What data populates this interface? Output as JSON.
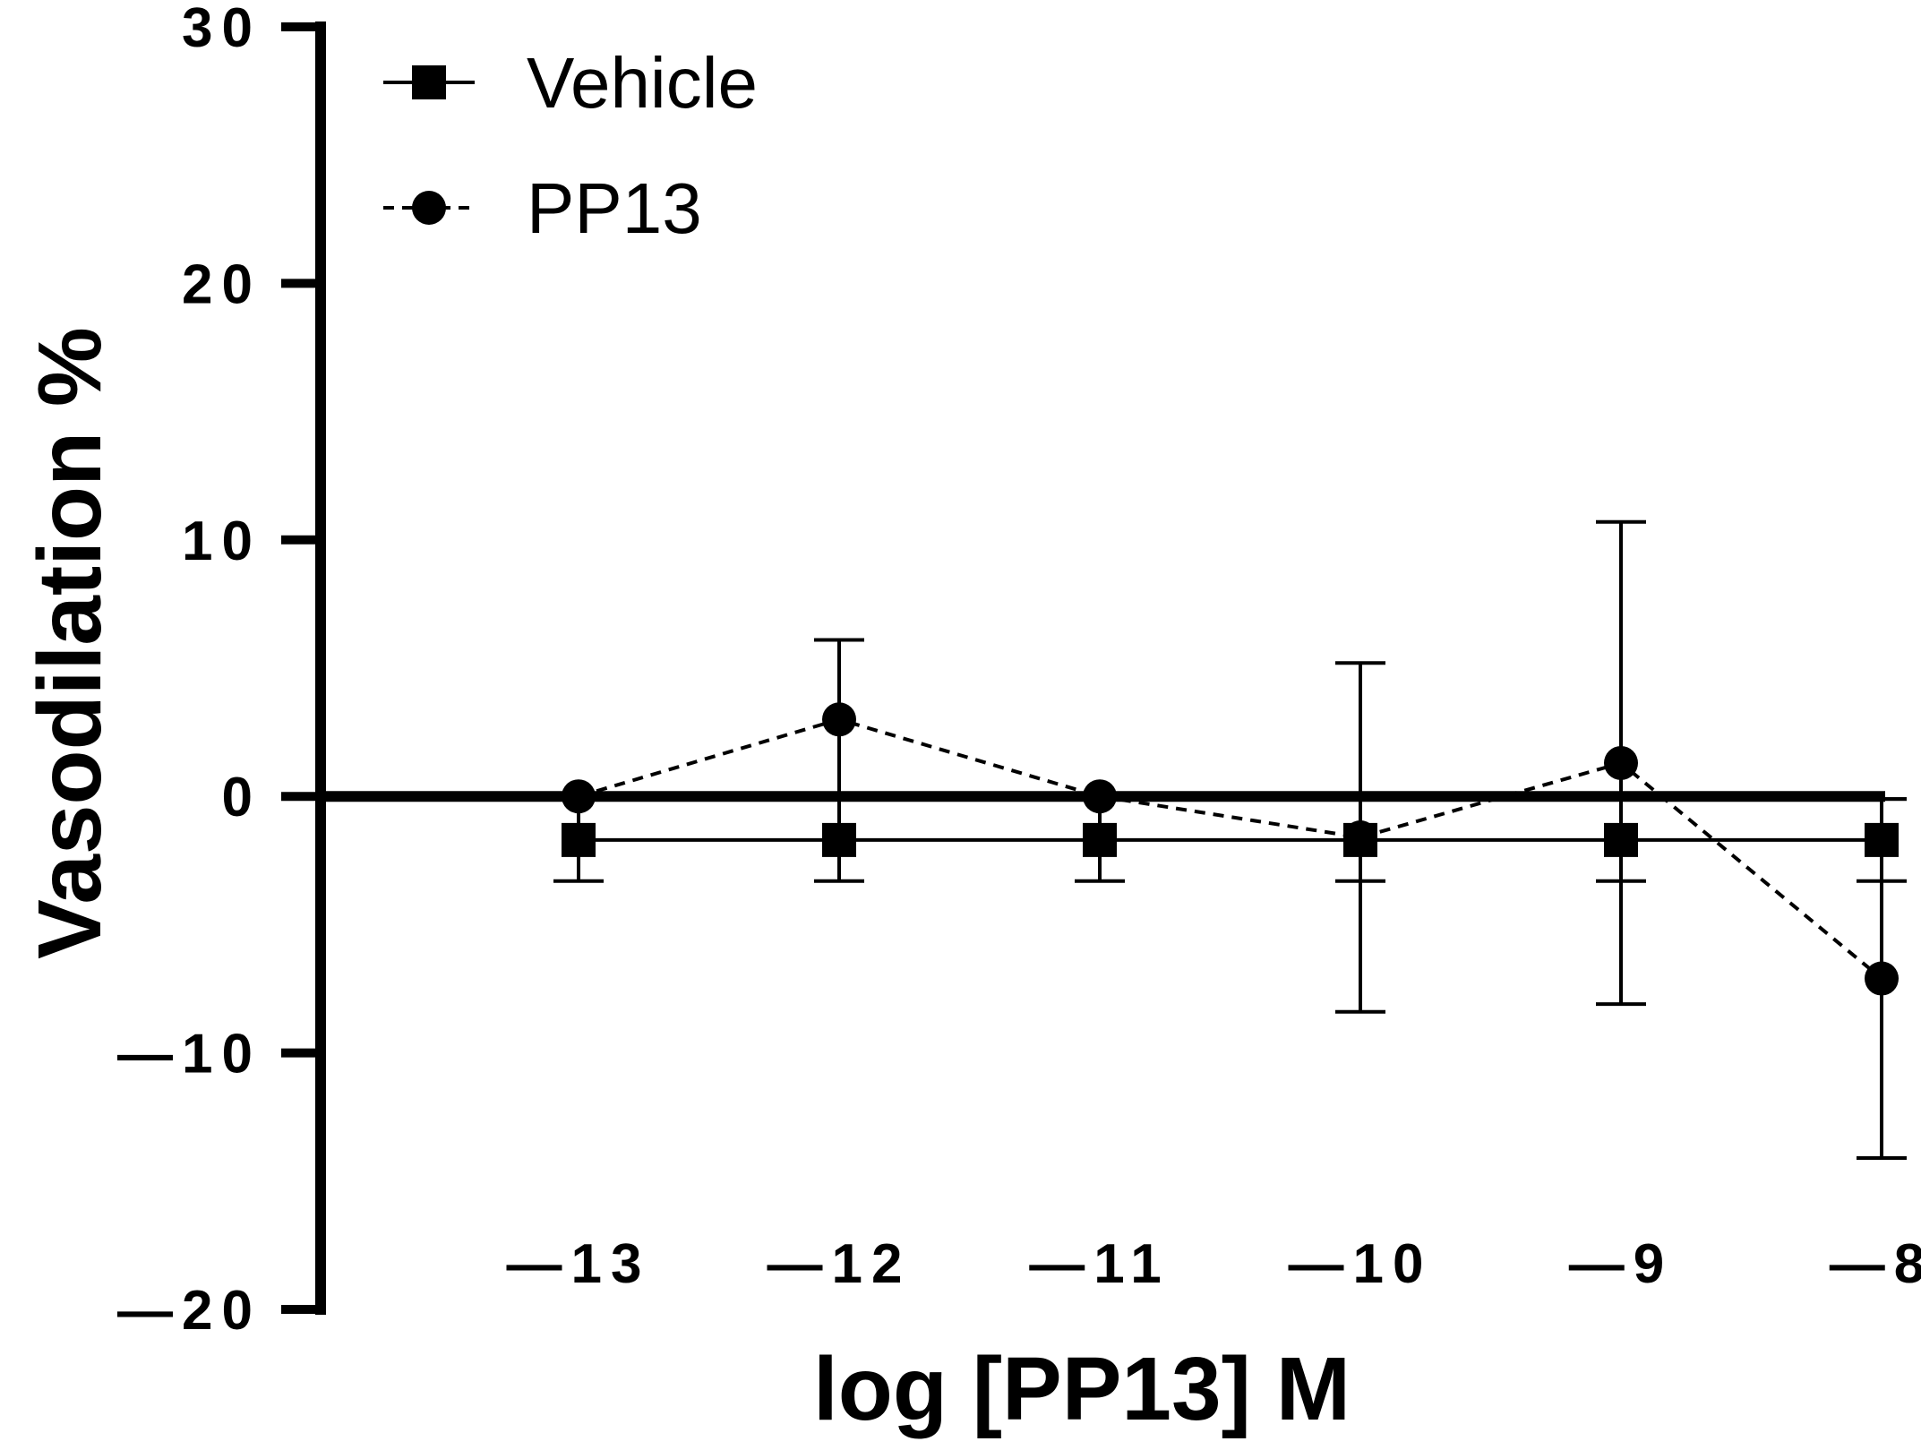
{
  "chart_data": {
    "type": "line",
    "title": "",
    "xlabel": "log [PP13] M",
    "ylabel": "Vasodilation %",
    "x": [
      -13,
      -12,
      -11,
      -10,
      -9,
      -8
    ],
    "x_tick_labels": [
      "—13",
      "—12",
      "—11",
      "—10",
      "—9",
      "—8"
    ],
    "xlim": [
      -14,
      -8
    ],
    "ylim": [
      -20,
      30
    ],
    "y_ticks": [
      30,
      20,
      10,
      0,
      -10,
      -20
    ],
    "y_tick_labels": [
      "30",
      "20",
      "10",
      "0",
      "—10",
      "—20"
    ],
    "legend_position": "top-left",
    "series": [
      {
        "name": "Vehicle",
        "marker": "square",
        "line_style": "solid",
        "values": [
          -1.7,
          -1.7,
          -1.7,
          -1.7,
          -1.7,
          -1.7
        ],
        "error": [
          1.6,
          1.6,
          1.6,
          1.6,
          1.6,
          1.6
        ]
      },
      {
        "name": "PP13",
        "marker": "circle",
        "line_style": "dashed",
        "values": [
          0.0,
          3.0,
          0.0,
          -1.6,
          1.3,
          -7.1
        ],
        "error": [
          null,
          3.1,
          null,
          6.8,
          9.4,
          7.0
        ]
      }
    ]
  }
}
